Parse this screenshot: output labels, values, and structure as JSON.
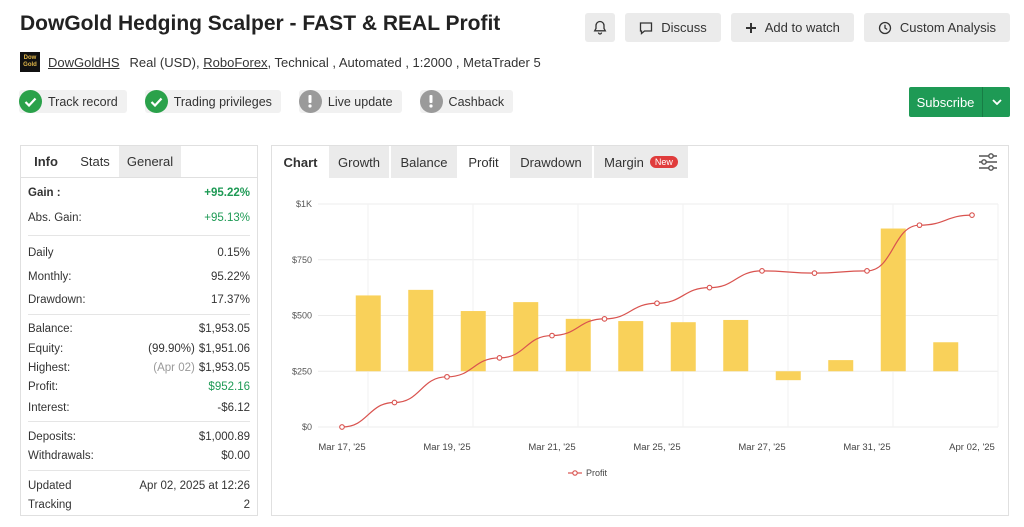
{
  "header": {
    "title": "DowGold Hedging Scalper - FAST & REAL Profit",
    "discuss_label": "Discuss",
    "add_watch_label": "Add to watch",
    "custom_analysis_label": "Custom Analysis"
  },
  "meta": {
    "logo_line1": "Dow",
    "logo_line2": "Gold",
    "author": "DowGoldHS",
    "account_prefix": "Real (USD),",
    "broker": "RoboForex",
    "details": ", Technical , Automated , 1:2000 , MetaTrader 5"
  },
  "badges": [
    {
      "label": "Track record",
      "status": "ok"
    },
    {
      "label": "Trading privileges",
      "status": "ok"
    },
    {
      "label": "Live update",
      "status": "na"
    },
    {
      "label": "Cashback",
      "status": "na"
    }
  ],
  "subscribe": {
    "label": "Subscribe"
  },
  "stats_tabs": [
    "Info",
    "Stats",
    "General"
  ],
  "stats": {
    "gain_label": "Gain :",
    "gain": "+95.22%",
    "abs_gain_label": "Abs. Gain:",
    "abs_gain": "+95.13%",
    "daily_label": "Daily",
    "daily": "0.15%",
    "monthly_label": "Monthly:",
    "monthly": "95.22%",
    "drawdown_label": "Drawdown:",
    "drawdown": "17.37%",
    "balance_label": "Balance:",
    "balance": "$1,953.05",
    "equity_label": "Equity:",
    "equity_sub": "(99.90%)",
    "equity": "$1,951.06",
    "highest_label": "Highest:",
    "highest_sub": "(Apr 02)",
    "highest": "$1,953.05",
    "profit_label": "Profit:",
    "profit": "$952.16",
    "interest_label": "Interest:",
    "interest": "-$6.12",
    "deposits_label": "Deposits:",
    "deposits": "$1,000.89",
    "withdrawals_label": "Withdrawals:",
    "withdrawals": "$0.00",
    "updated_label": "Updated",
    "updated": "Apr 02, 2025 at 12:26",
    "tracking_label": "Tracking",
    "tracking": "2"
  },
  "chart_tabs": {
    "chart": "Chart",
    "growth": "Growth",
    "balance": "Balance",
    "profit": "Profit",
    "drawdown": "Drawdown",
    "margin": "Margin",
    "new_badge": "New"
  },
  "colors": {
    "bar": "#f9d15a",
    "line": "#d9534f",
    "green": "#1e9a55"
  },
  "chart_data": {
    "type": "bar",
    "y_tick_labels": [
      "$0",
      "$250",
      "$500",
      "$750",
      "$1K"
    ],
    "y_ticks": [
      0,
      250,
      500,
      750,
      1000
    ],
    "ylim": [
      0,
      1000
    ],
    "x_tick_labels": [
      "Mar 17, '25",
      "Mar 19, '25",
      "Mar 21, '25",
      "Mar 25, '25",
      "Mar 27, '25",
      "Mar 31, '25",
      "Apr 02, '25"
    ],
    "bars": [
      {
        "low": 250,
        "high": 590
      },
      {
        "low": 250,
        "high": 615
      },
      {
        "low": 250,
        "high": 520
      },
      {
        "low": 250,
        "high": 560
      },
      {
        "low": 250,
        "high": 485
      },
      {
        "low": 250,
        "high": 475
      },
      {
        "low": 250,
        "high": 470
      },
      {
        "low": 250,
        "high": 480
      },
      {
        "low": 210,
        "high": 250
      },
      {
        "low": 250,
        "high": 300
      },
      {
        "low": 250,
        "high": 890
      },
      {
        "low": 250,
        "high": 380
      }
    ],
    "series": [
      {
        "name": "Profit",
        "values": [
          0,
          110,
          225,
          310,
          410,
          485,
          555,
          625,
          700,
          690,
          700,
          905,
          950
        ]
      }
    ],
    "legend_position": "bottom-center",
    "grid": true
  }
}
